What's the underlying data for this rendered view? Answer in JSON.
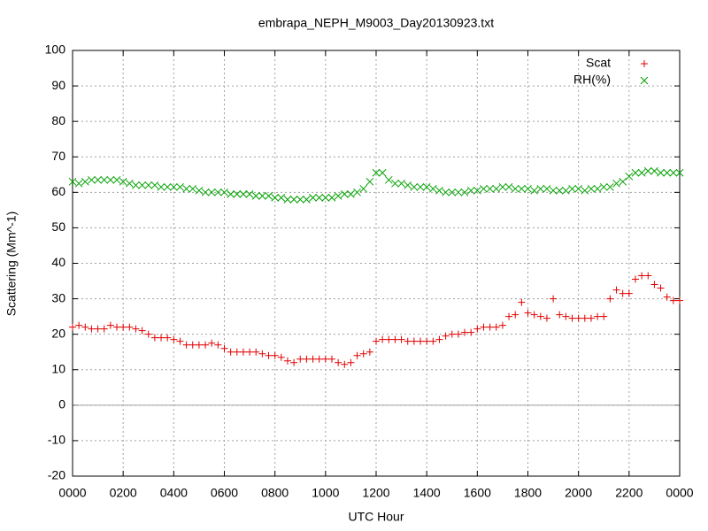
{
  "chart_data": {
    "type": "scatter",
    "title": "embrapa_NEPH_M9003_Day20130923.txt",
    "xlabel": "UTC Hour",
    "ylabel": "Scattering (Mm^-1)",
    "xlim": [
      0,
      24
    ],
    "ylim": [
      -20,
      100
    ],
    "xticks": [
      {
        "value": 0,
        "label": "0000"
      },
      {
        "value": 2,
        "label": "0200"
      },
      {
        "value": 4,
        "label": "0400"
      },
      {
        "value": 6,
        "label": "0600"
      },
      {
        "value": 8,
        "label": "0800"
      },
      {
        "value": 10,
        "label": "1000"
      },
      {
        "value": 12,
        "label": "1200"
      },
      {
        "value": 14,
        "label": "1400"
      },
      {
        "value": 16,
        "label": "1600"
      },
      {
        "value": 18,
        "label": "1800"
      },
      {
        "value": 20,
        "label": "2000"
      },
      {
        "value": 22,
        "label": "2200"
      },
      {
        "value": 24,
        "label": "0000"
      }
    ],
    "yticks": [
      -20,
      -10,
      0,
      10,
      20,
      30,
      40,
      50,
      60,
      70,
      80,
      90,
      100
    ],
    "grid": true,
    "zeroaxis": true,
    "legend": "top-right",
    "x": [
      0,
      0.25,
      0.5,
      0.75,
      1,
      1.25,
      1.5,
      1.75,
      2,
      2.25,
      2.5,
      2.75,
      3,
      3.25,
      3.5,
      3.75,
      4,
      4.25,
      4.5,
      4.75,
      5,
      5.25,
      5.5,
      5.75,
      6,
      6.25,
      6.5,
      6.75,
      7,
      7.25,
      7.5,
      7.75,
      8,
      8.25,
      8.5,
      8.75,
      9,
      9.25,
      9.5,
      9.75,
      10,
      10.25,
      10.5,
      10.75,
      11,
      11.25,
      11.5,
      11.75,
      12,
      12.25,
      12.5,
      12.75,
      13,
      13.25,
      13.5,
      13.75,
      14,
      14.25,
      14.5,
      14.75,
      15,
      15.25,
      15.5,
      15.75,
      16,
      16.25,
      16.5,
      16.75,
      17,
      17.25,
      17.5,
      17.75,
      18,
      18.25,
      18.5,
      18.75,
      19,
      19.25,
      19.5,
      19.75,
      20,
      20.25,
      20.5,
      20.75,
      21,
      21.25,
      21.5,
      21.75,
      22,
      22.25,
      22.5,
      22.75,
      23,
      23.25,
      23.5,
      23.75,
      24
    ],
    "series": [
      {
        "name": "Scat",
        "color": "#e00000",
        "marker": "plus",
        "values": [
          22,
          22.5,
          22,
          21.5,
          21.5,
          21.5,
          22.5,
          22,
          22,
          22,
          21.5,
          21,
          20,
          19,
          19,
          19,
          18.5,
          18,
          17,
          17,
          17,
          17,
          17.5,
          17,
          16,
          15,
          15,
          15,
          15,
          15,
          14.5,
          14,
          14,
          13.5,
          12.5,
          12,
          13,
          13,
          13,
          13,
          13,
          13,
          12,
          11.5,
          12,
          14,
          14.5,
          15,
          18,
          18.5,
          18.5,
          18.5,
          18.5,
          18,
          18,
          18,
          18,
          18,
          18.5,
          19.5,
          20,
          20,
          20.5,
          20.5,
          21.5,
          22,
          22,
          22,
          22.5,
          25,
          25.5,
          29,
          26,
          25.5,
          25,
          24.5,
          30,
          25.5,
          25,
          24.5,
          24.5,
          24.5,
          24.5,
          25,
          25,
          30,
          32.5,
          31.5,
          31.5,
          35.5,
          36.5,
          36.5,
          34,
          33,
          30.5,
          29.5,
          29.5
        ]
      },
      {
        "name": "RH(%)",
        "color": "#00a000",
        "marker": "cross",
        "values": [
          63,
          62.5,
          63,
          63.5,
          63.5,
          63.5,
          63.5,
          63.5,
          63,
          62.5,
          62,
          62,
          62,
          62,
          61.5,
          61.5,
          61.5,
          61.5,
          61,
          61,
          60.5,
          60,
          60,
          60,
          60,
          59.5,
          59.5,
          59.5,
          59.5,
          59,
          59,
          59,
          58.5,
          58.5,
          58,
          58,
          58,
          58,
          58.5,
          58.5,
          58.5,
          58.5,
          59,
          59.5,
          59.5,
          60,
          61,
          63,
          65.5,
          65.5,
          63.5,
          62.5,
          62.5,
          62,
          61.5,
          61.5,
          61.5,
          61,
          60.5,
          60,
          60,
          60,
          60,
          60.5,
          60.5,
          61,
          61,
          61,
          61.5,
          61.5,
          61,
          61,
          61,
          60.5,
          61,
          61,
          60.5,
          60.5,
          60.5,
          61,
          61,
          60.5,
          61,
          61,
          61.5,
          61.5,
          62.5,
          63,
          64.5,
          65.5,
          65.5,
          66,
          66,
          65.5,
          65.5,
          65.5,
          65.5
        ]
      }
    ]
  }
}
